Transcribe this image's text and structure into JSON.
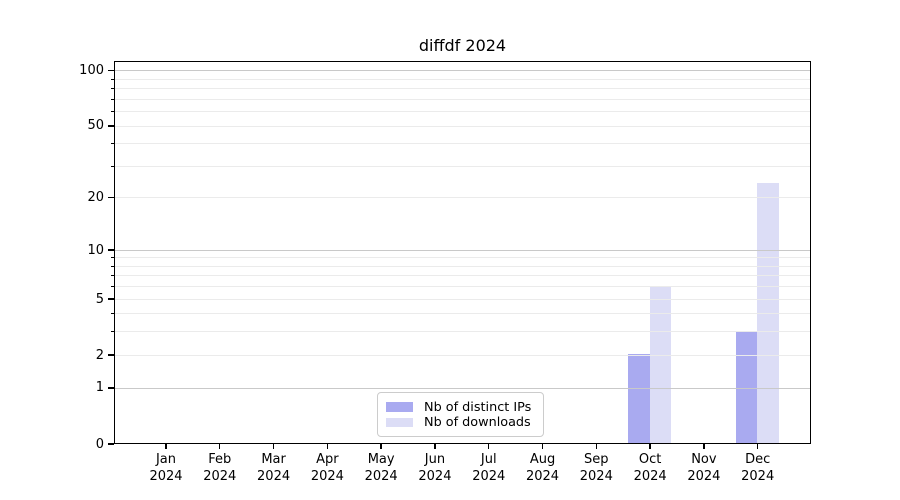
{
  "chart_data": {
    "type": "bar",
    "title": "diffdf 2024",
    "year": "2024",
    "months": [
      "Jan",
      "Feb",
      "Mar",
      "Apr",
      "May",
      "Jun",
      "Jul",
      "Aug",
      "Sep",
      "Oct",
      "Nov",
      "Dec"
    ],
    "series": [
      {
        "name": "Nb of distinct IPs",
        "color": "#a9aaf0",
        "values": [
          0,
          0,
          0,
          0,
          0,
          0,
          0,
          0,
          0,
          2,
          0,
          3
        ]
      },
      {
        "name": "Nb of downloads",
        "color": "#dcddf6",
        "values": [
          0,
          0,
          0,
          0,
          0,
          0,
          0,
          0,
          0,
          6,
          0,
          24
        ]
      }
    ],
    "xlabel": "",
    "ylabel": "",
    "y_scale": "log10(value+1)",
    "ylim": [
      0,
      113.6
    ],
    "y_ticks": [
      0,
      1,
      2,
      5,
      10,
      20,
      50,
      100
    ],
    "y_minor_ticks": [
      3,
      4,
      6,
      7,
      8,
      9,
      30,
      40,
      60,
      70,
      80,
      90
    ],
    "y_emphasized_gridlines": [
      1,
      10,
      100
    ],
    "grid": "horizontal, drawn over bars",
    "legend_position": "lower center",
    "colors": {
      "grid_major": "#c9c9c9",
      "grid_minor": "#ebebeb",
      "axis": "#000000",
      "legend_border": "#cccccc",
      "background": "#ffffff"
    }
  }
}
